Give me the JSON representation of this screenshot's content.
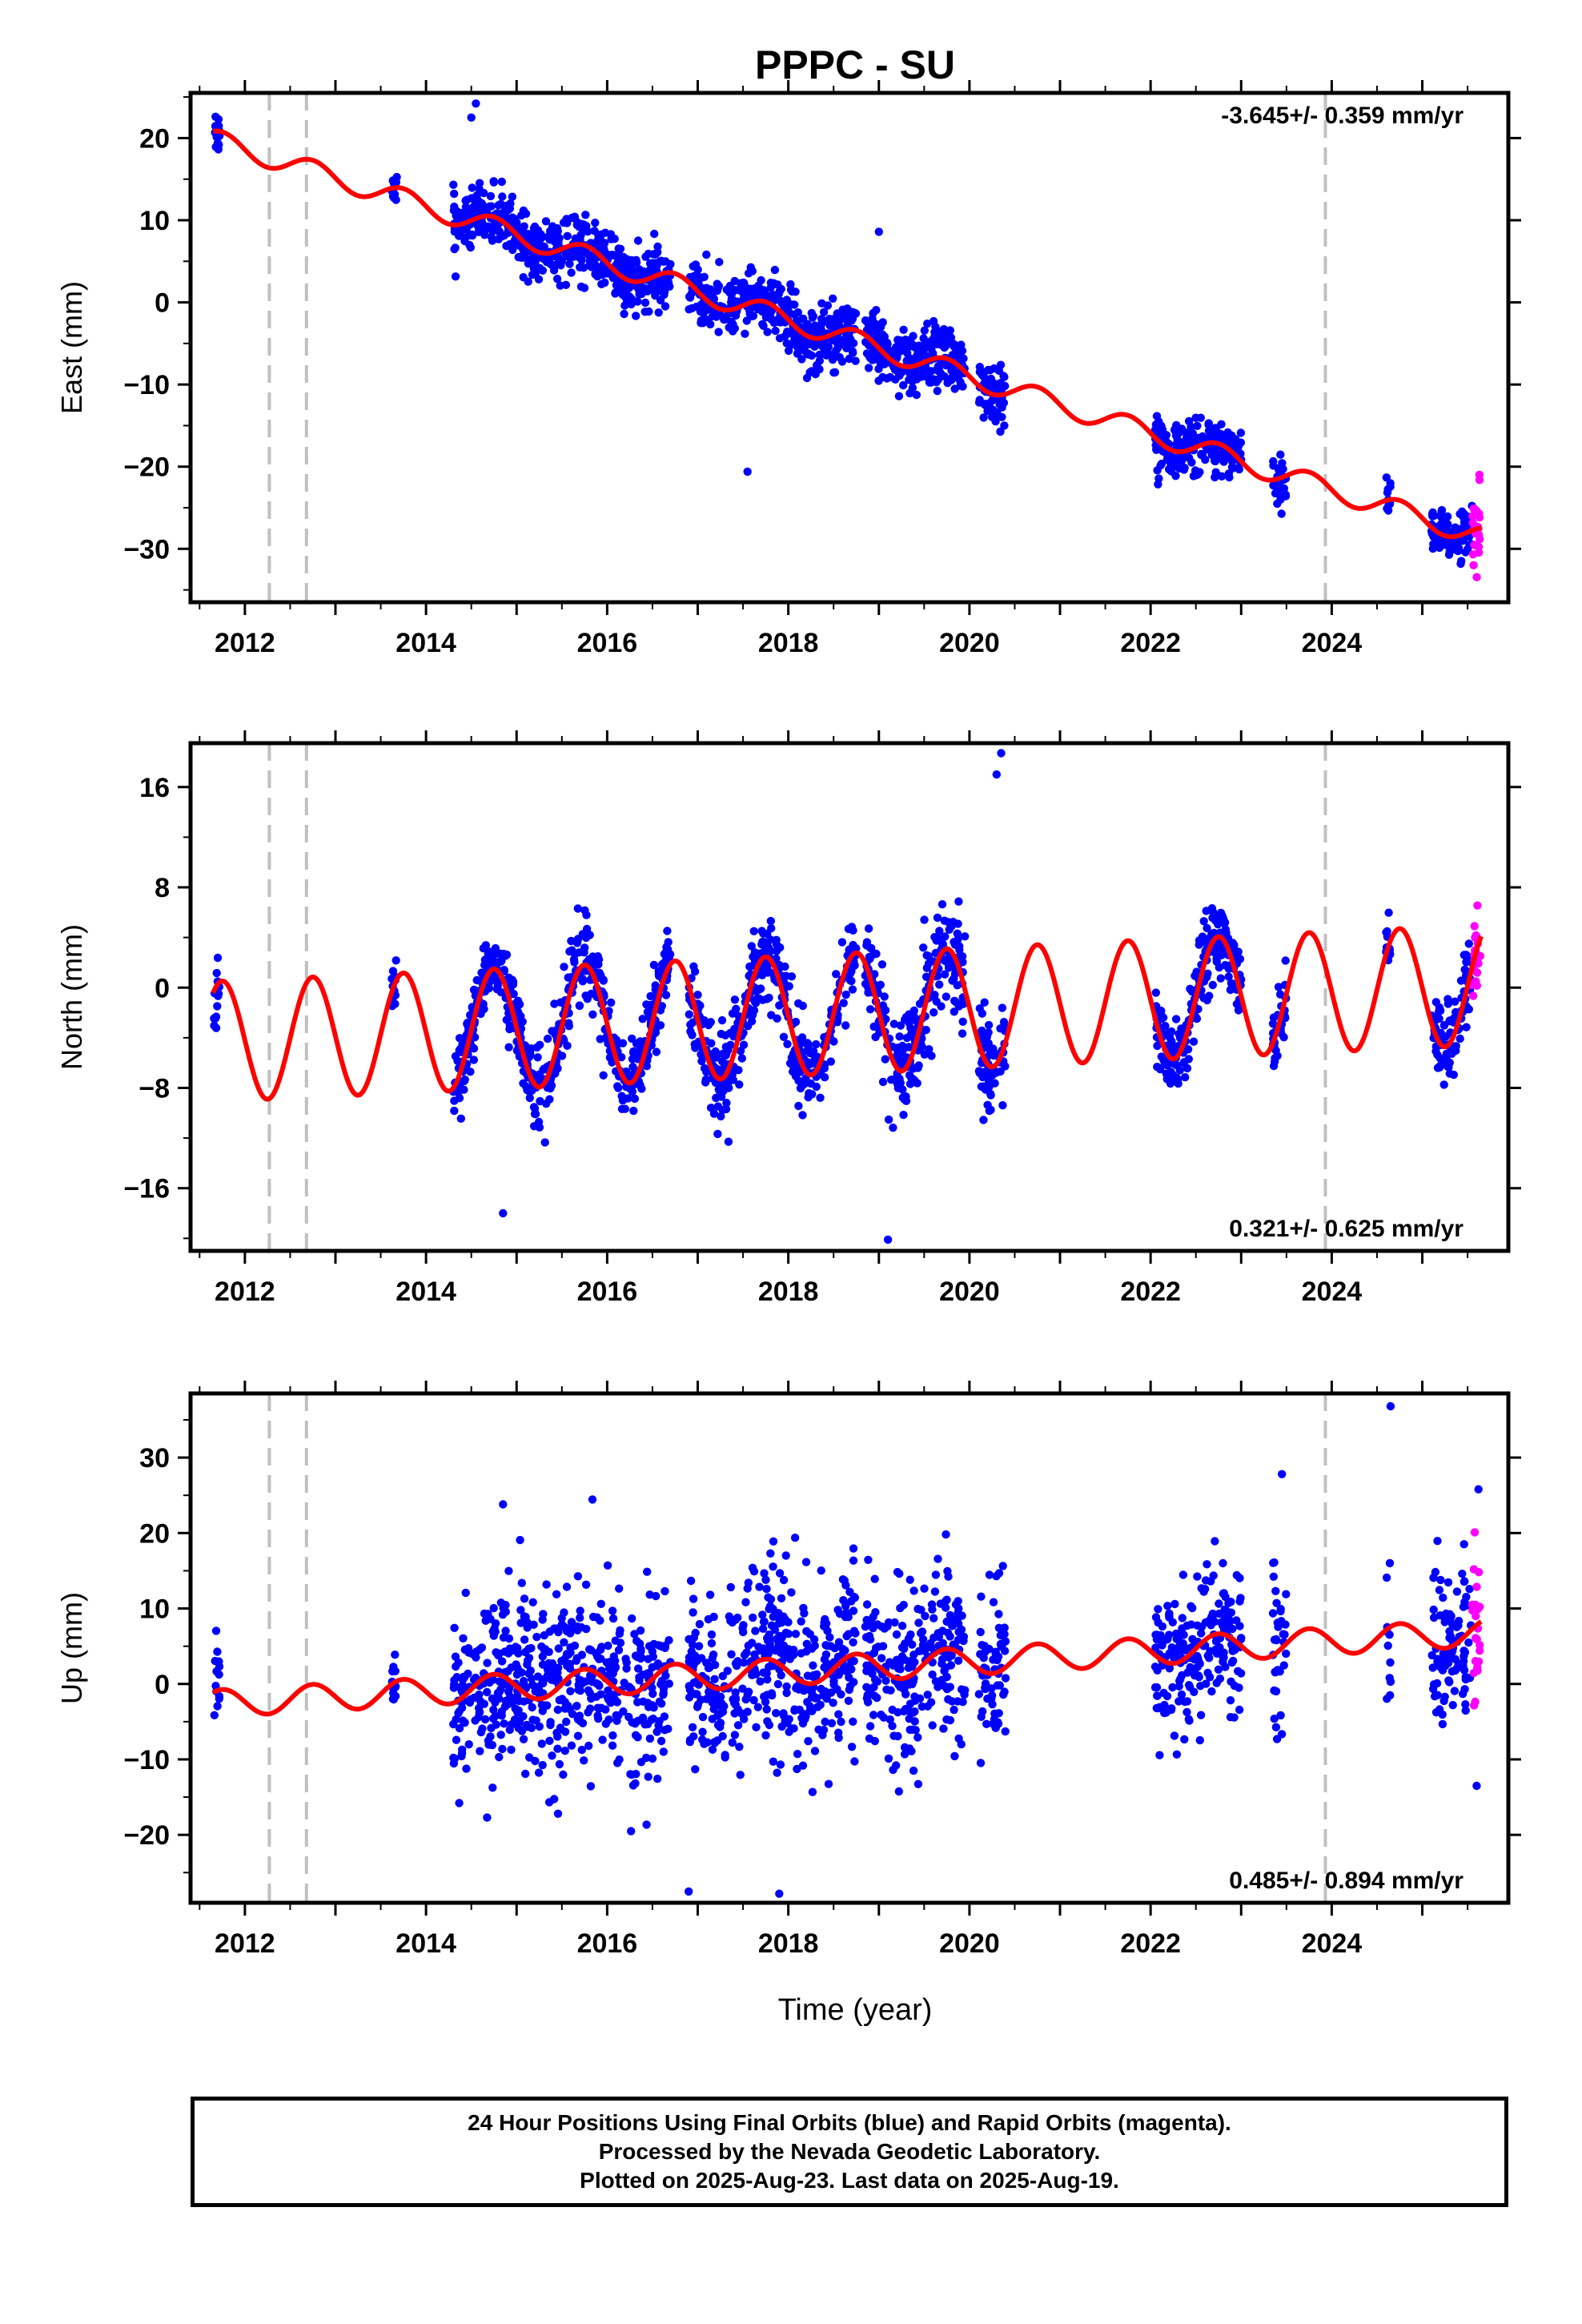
{
  "chart_data": {
    "type": "scatter",
    "title": "PPPC - SU",
    "xlabel": "Time (year)",
    "x_ticks": [
      "2012",
      "2014",
      "2016",
      "2018",
      "2020",
      "2022",
      "2024"
    ],
    "xlim": [
      2011.4,
      2025.95
    ],
    "vertical_markers": [
      2012.27,
      2012.68,
      2023.93
    ],
    "colors": {
      "final_orbits": "#0000ff",
      "rapid_orbits": "#ff00ff",
      "model": "#ff0000",
      "markers": "#c0c0c0"
    },
    "panels": [
      {
        "id": "east",
        "ylabel": "East (mm)",
        "ylim": [
          -36.5,
          25.5
        ],
        "y_ticks": [
          20,
          10,
          0,
          -10,
          -20,
          -30
        ],
        "rate_label": "-3.645+/- 0.359 mm/yr",
        "rate_position": "top-right",
        "trend": {
          "start": [
            2011.65,
            19.8
          ],
          "end": [
            2025.65,
            -28.5
          ],
          "seasonal_amplitude": 1.3
        },
        "data_segments": [
          {
            "from": 2011.66,
            "to": 2011.72,
            "scatter": 1.4
          },
          {
            "from": 2013.62,
            "to": 2013.68,
            "scatter": 1.0
          },
          {
            "from": 2014.3,
            "to": 2016.7,
            "scatter": 1.8
          },
          {
            "from": 2016.9,
            "to": 2018.75,
            "scatter": 1.8
          },
          {
            "from": 2018.85,
            "to": 2019.95,
            "scatter": 2.0
          },
          {
            "from": 2020.1,
            "to": 2020.4,
            "scatter": 1.7
          },
          {
            "from": 2022.05,
            "to": 2023.0,
            "scatter": 1.6
          },
          {
            "from": 2023.35,
            "to": 2023.5,
            "scatter": 1.5
          },
          {
            "from": 2024.6,
            "to": 2024.65,
            "scatter": 1.2
          },
          {
            "from": 2025.1,
            "to": 2025.55,
            "scatter": 1.5
          }
        ],
        "rapid_segment": {
          "from": 2025.55,
          "to": 2025.64,
          "scatter": 2.5
        },
        "outliers": [
          [
            2017.55,
            -20.6
          ],
          [
            2019.0,
            8.6
          ],
          [
            2014.55,
            24.2
          ],
          [
            2014.5,
            22.5
          ]
        ]
      },
      {
        "id": "north",
        "ylabel": "North (mm)",
        "ylim": [
          -21,
          19.5
        ],
        "y_ticks": [
          16,
          8,
          0,
          -8,
          -16
        ],
        "rate_label": "0.321+/- 0.625 mm/yr",
        "rate_position": "bottom-right",
        "trend": {
          "start": [
            2011.65,
            -4.3
          ],
          "end": [
            2025.65,
            0.2
          ],
          "seasonal_amplitude": 4.8
        },
        "data_segments": [
          {
            "from": 2011.66,
            "to": 2011.72,
            "scatter": 1.8
          },
          {
            "from": 2013.62,
            "to": 2013.68,
            "scatter": 1.0
          },
          {
            "from": 2014.3,
            "to": 2016.7,
            "scatter": 1.6
          },
          {
            "from": 2016.9,
            "to": 2018.75,
            "scatter": 1.7
          },
          {
            "from": 2018.85,
            "to": 2019.95,
            "scatter": 2.0
          },
          {
            "from": 2020.1,
            "to": 2020.4,
            "scatter": 2.0
          },
          {
            "from": 2022.05,
            "to": 2023.0,
            "scatter": 1.5
          },
          {
            "from": 2023.35,
            "to": 2023.5,
            "scatter": 1.4
          },
          {
            "from": 2024.6,
            "to": 2024.65,
            "scatter": 1.2
          },
          {
            "from": 2025.1,
            "to": 2025.55,
            "scatter": 1.6
          }
        ],
        "rapid_segment": {
          "from": 2025.55,
          "to": 2025.64,
          "scatter": 2.0
        },
        "outliers": [
          [
            2020.35,
            18.7
          ],
          [
            2020.3,
            17.0
          ],
          [
            2019.1,
            -20.1
          ],
          [
            2014.85,
            -18.0
          ],
          [
            2017.62,
            4.5
          ]
        ]
      },
      {
        "id": "up",
        "ylabel": "Up (mm)",
        "ylim": [
          -29,
          38.5
        ],
        "y_ticks": [
          30,
          20,
          10,
          0,
          -10,
          -20
        ],
        "rate_label": "0.485+/- 0.894 mm/yr",
        "rate_position": "bottom-right",
        "trend": {
          "start": [
            2011.65,
            -2.6
          ],
          "end": [
            2025.65,
            6.8
          ],
          "seasonal_amplitude": 1.8
        },
        "data_segments": [
          {
            "from": 2011.66,
            "to": 2011.72,
            "scatter": 4.5
          },
          {
            "from": 2013.62,
            "to": 2013.68,
            "scatter": 2.5
          },
          {
            "from": 2014.3,
            "to": 2016.7,
            "scatter": 6.0
          },
          {
            "from": 2016.9,
            "to": 2018.75,
            "scatter": 6.2
          },
          {
            "from": 2018.85,
            "to": 2019.95,
            "scatter": 5.5
          },
          {
            "from": 2020.1,
            "to": 2020.4,
            "scatter": 5.0
          },
          {
            "from": 2022.05,
            "to": 2023.0,
            "scatter": 5.0
          },
          {
            "from": 2023.35,
            "to": 2023.5,
            "scatter": 5.5
          },
          {
            "from": 2024.6,
            "to": 2024.65,
            "scatter": 4.0
          },
          {
            "from": 2025.1,
            "to": 2025.55,
            "scatter": 5.0
          }
        ],
        "rapid_segment": {
          "from": 2025.55,
          "to": 2025.64,
          "scatter": 6.5
        },
        "outliers": [
          [
            2024.65,
            36.8
          ],
          [
            2023.45,
            27.8
          ],
          [
            2014.85,
            23.8
          ],
          [
            2016.9,
            -27.5
          ],
          [
            2017.9,
            -27.8
          ],
          [
            2025.62,
            25.8
          ],
          [
            2025.6,
            -13.5
          ]
        ]
      }
    ]
  },
  "footer": {
    "line1": "24 Hour Positions Using Final Orbits (blue) and Rapid Orbits (magenta).",
    "line2": "Processed by the Nevada Geodetic Laboratory.",
    "line3": "Plotted on 2025-Aug-23. Last data on 2025-Aug-19."
  }
}
